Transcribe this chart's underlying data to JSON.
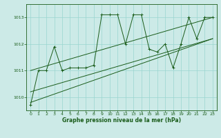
{
  "title": "Graphe pression niveau de la mer (hPa)",
  "xlim": [
    -0.5,
    23.5
  ],
  "ylim": [
    1009.5,
    1013.5
  ],
  "yticks": [
    1010,
    1011,
    1012,
    1013
  ],
  "xticks": [
    0,
    1,
    2,
    3,
    4,
    5,
    6,
    7,
    8,
    9,
    10,
    11,
    12,
    13,
    14,
    15,
    16,
    17,
    18,
    19,
    20,
    21,
    22,
    23
  ],
  "bg_color": "#cceae7",
  "grid_color": "#99d5d0",
  "line_color": "#1a5c1a",
  "series": [
    [
      0,
      1009.7
    ],
    [
      1,
      1011.0
    ],
    [
      2,
      1011.0
    ],
    [
      3,
      1011.9
    ],
    [
      4,
      1011.0
    ],
    [
      5,
      1011.1
    ],
    [
      6,
      1011.1
    ],
    [
      7,
      1011.1
    ],
    [
      8,
      1011.2
    ],
    [
      9,
      1013.1
    ],
    [
      10,
      1013.1
    ],
    [
      11,
      1013.1
    ],
    [
      12,
      1012.0
    ],
    [
      13,
      1013.1
    ],
    [
      14,
      1013.1
    ],
    [
      15,
      1011.8
    ],
    [
      16,
      1011.7
    ],
    [
      17,
      1012.0
    ],
    [
      18,
      1011.1
    ],
    [
      19,
      1012.0
    ],
    [
      20,
      1013.0
    ],
    [
      21,
      1012.2
    ],
    [
      22,
      1013.0
    ],
    [
      23,
      1013.0
    ]
  ],
  "line1": [
    [
      0,
      1011.0
    ],
    [
      23,
      1013.0
    ]
  ],
  "line2": [
    [
      0,
      1010.2
    ],
    [
      23,
      1012.2
    ]
  ],
  "line3": [
    [
      0,
      1009.8
    ],
    [
      23,
      1012.2
    ]
  ]
}
